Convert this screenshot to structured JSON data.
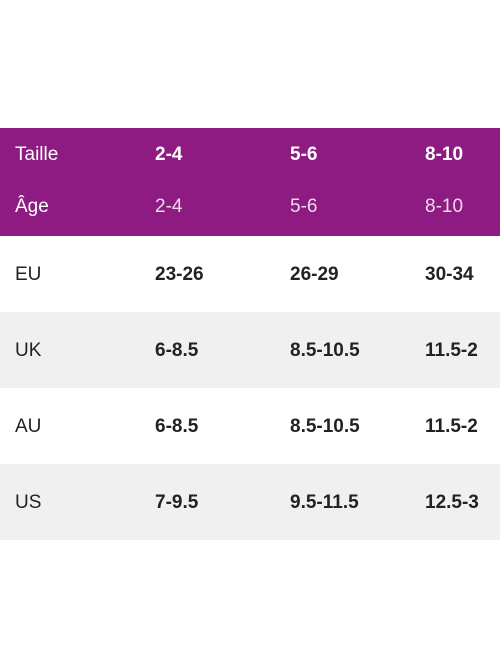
{
  "table": {
    "header": [
      [
        "Taille",
        "2-4",
        "5-6",
        "8-10"
      ],
      [
        "Âge",
        "2-4",
        "5-6",
        "8-10"
      ]
    ],
    "rows": [
      [
        "EU",
        "23-26",
        "26-29",
        "30-34"
      ],
      [
        "UK",
        "6-8.5",
        "8.5-10.5",
        "11.5-2"
      ],
      [
        "AU",
        "6-8.5",
        "8.5-10.5",
        "11.5-2"
      ],
      [
        "US",
        "7-9.5",
        "9.5-11.5",
        "12.5-3"
      ]
    ]
  }
}
